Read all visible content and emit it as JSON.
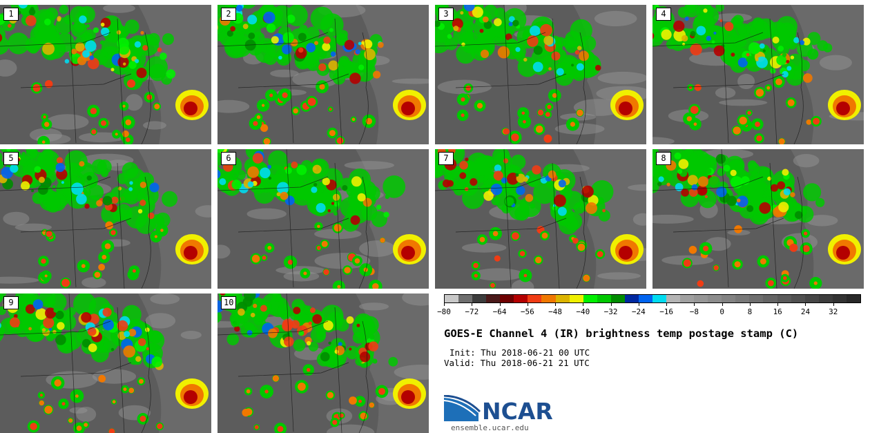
{
  "panels": [
    {
      "label": "1"
    },
    {
      "label": "2"
    },
    {
      "label": "3"
    },
    {
      "label": "4"
    },
    {
      "label": "5"
    },
    {
      "label": "6"
    },
    {
      "label": "7"
    },
    {
      "label": "8"
    },
    {
      "label": "9"
    },
    {
      "label": "10"
    }
  ],
  "colorbar": {
    "min": -80,
    "max": 40,
    "step": 4,
    "colors": [
      "#c8c8c8",
      "#6e6e6e",
      "#3c3c3c",
      "#4a1a1a",
      "#6e0000",
      "#b40000",
      "#f03c14",
      "#f07800",
      "#dcb400",
      "#f0f000",
      "#00f000",
      "#00c800",
      "#008c00",
      "#0028a0",
      "#0064f0",
      "#00dcf0",
      "#b4b4b4",
      "#a0a0a0",
      "#969696",
      "#8c8c8c",
      "#828282",
      "#787878",
      "#6e6e6e",
      "#646464",
      "#5a5a5a",
      "#505050",
      "#464646",
      "#3c3c3c",
      "#323232",
      "#282828"
    ],
    "tick_labels": [
      "−80",
      "−72",
      "−64",
      "−56",
      "−48",
      "−40",
      "−32",
      "−24",
      "−16",
      "−8",
      "0",
      "8",
      "16",
      "24",
      "32"
    ]
  },
  "title": "GOES-E Channel 4 (IR) brightness temp postage stamp (C)",
  "init": "Init: Thu 2018-06-21 00 UTC",
  "valid": "Valid: Thu 2018-06-21 21 UTC",
  "logo_text": "NCAR",
  "url": "ensemble.ucar.edu"
}
